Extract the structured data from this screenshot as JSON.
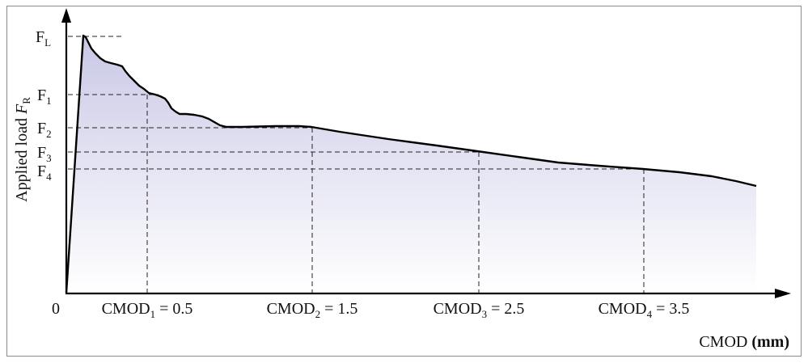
{
  "figure": {
    "y_axis_label": "Applied load",
    "y_axis_symbol": "F",
    "y_axis_symbol_sub": "R",
    "x_axis_label": "CMOD",
    "x_axis_unit": "(mm)",
    "origin_label": "0",
    "colors": {
      "curve": "#000000",
      "fill_top": "#c9c8e6",
      "fill_bottom": "#ffffff",
      "dashes": "#222222",
      "frame": "#8a8a8a"
    }
  },
  "load_levels": [
    {
      "base": "F",
      "sub": "L"
    },
    {
      "base": "F",
      "sub": "1"
    },
    {
      "base": "F",
      "sub": "2"
    },
    {
      "base": "F",
      "sub": "3"
    },
    {
      "base": "F",
      "sub": "4"
    }
  ],
  "cmod_marks": [
    {
      "base": "CMOD",
      "sub": "1",
      "value_text": " = 0.5"
    },
    {
      "base": "CMOD",
      "sub": "2",
      "value_text": " = 1.5"
    },
    {
      "base": "CMOD",
      "sub": "3",
      "value_text": " = 2.5"
    },
    {
      "base": "CMOD",
      "sub": "4",
      "value_text": " = 3.5"
    }
  ]
}
